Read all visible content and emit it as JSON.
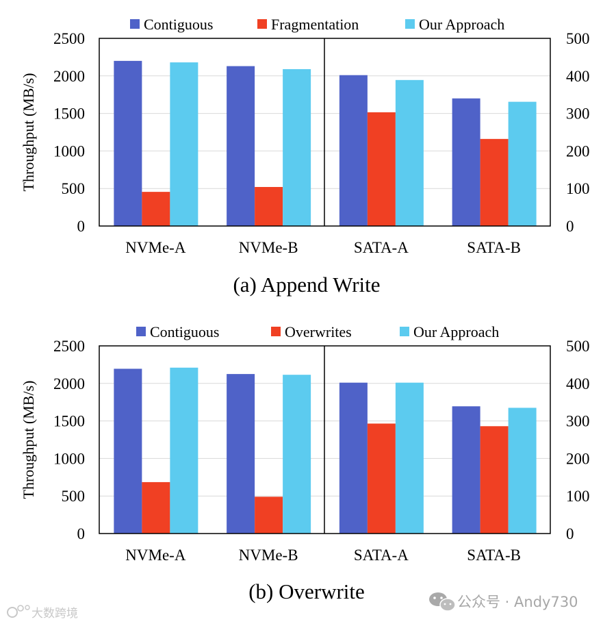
{
  "chart_data": [
    {
      "type": "bar",
      "title": "(a) Append Write",
      "ylabel": "Throughput (MB/s)",
      "ylim": [
        0,
        2500
      ],
      "yticks": [
        "0",
        "500",
        "1000",
        "1500",
        "2000",
        "2500"
      ],
      "y2lim": [
        0,
        500
      ],
      "y2ticks": [
        "0",
        "100",
        "200",
        "300",
        "400",
        "500"
      ],
      "categories": [
        "NVMe-A",
        "NVMe-B",
        "SATA-A",
        "SATA-B"
      ],
      "axis_split_after": 2,
      "series": [
        {
          "name": "Contiguous",
          "color": "#4f62c8",
          "values": [
            2200,
            2130,
            402,
            340
          ]
        },
        {
          "name": "Fragmentation",
          "color": "#f04023",
          "values": [
            455,
            520,
            303,
            232
          ]
        },
        {
          "name": "Our Approach",
          "color": "#5ccbef",
          "values": [
            2180,
            2090,
            389,
            331
          ]
        }
      ],
      "value_axis": [
        "left",
        "left",
        "right",
        "right"
      ],
      "grid": true
    },
    {
      "type": "bar",
      "title": "(b) Overwrite",
      "ylabel": "Throughput (MB/s)",
      "ylim": [
        0,
        2500
      ],
      "yticks": [
        "0",
        "500",
        "1000",
        "1500",
        "2000",
        "2500"
      ],
      "y2lim": [
        0,
        500
      ],
      "y2ticks": [
        "0",
        "100",
        "200",
        "300",
        "400",
        "500"
      ],
      "categories": [
        "NVMe-A",
        "NVMe-B",
        "SATA-A",
        "SATA-B"
      ],
      "axis_split_after": 2,
      "series": [
        {
          "name": "Contiguous",
          "color": "#4f62c8",
          "values": [
            2195,
            2125,
            402,
            339
          ]
        },
        {
          "name": "Overwrites",
          "color": "#f04023",
          "values": [
            685,
            490,
            293,
            286
          ]
        },
        {
          "name": "Our Approach",
          "color": "#5ccbef",
          "values": [
            2210,
            2115,
            402,
            335
          ]
        }
      ],
      "value_axis": [
        "left",
        "left",
        "right",
        "right"
      ],
      "grid": true
    }
  ],
  "watermark": {
    "left_text": "大数跨境",
    "right_text": "公众号 · Andy730"
  }
}
